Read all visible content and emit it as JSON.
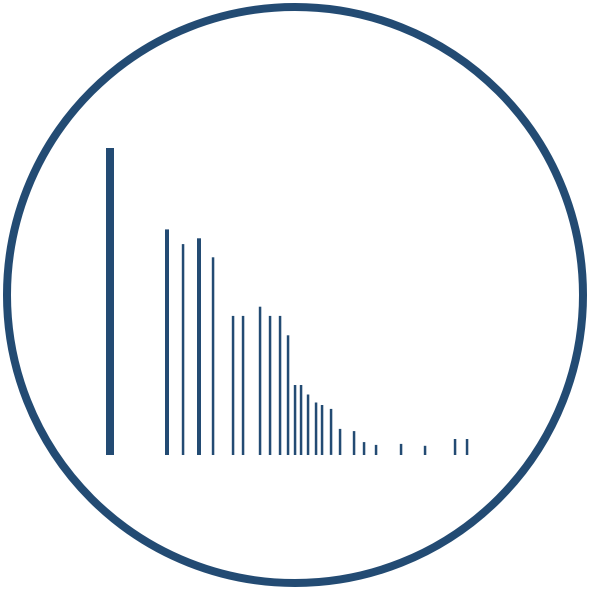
{
  "colors": {
    "primary": "#234b73",
    "background": "#ffffff"
  },
  "emblem": {
    "icon": "bar-spectrum-icon",
    "bars": [
      {
        "level": 1.0,
        "weight": "thick"
      },
      {
        "level": 0.735,
        "weight": "medium"
      },
      {
        "level": 0.687,
        "weight": "thin"
      },
      {
        "level": 0.706,
        "weight": "medium"
      },
      {
        "level": 0.644,
        "weight": "thin"
      },
      {
        "level": 0.453,
        "weight": "thin"
      },
      {
        "level": 0.453,
        "weight": "thin"
      },
      {
        "level": 0.483,
        "weight": "thin"
      },
      {
        "level": 0.453,
        "weight": "thin"
      },
      {
        "level": 0.453,
        "weight": "thin"
      },
      {
        "level": 0.39,
        "weight": "thin"
      },
      {
        "level": 0.228,
        "weight": "thin"
      },
      {
        "level": 0.228,
        "weight": "thin"
      },
      {
        "level": 0.197,
        "weight": "thin"
      },
      {
        "level": 0.171,
        "weight": "thin"
      },
      {
        "level": 0.163,
        "weight": "thin"
      },
      {
        "level": 0.15,
        "weight": "thin"
      },
      {
        "level": 0.085,
        "weight": "thin"
      },
      {
        "level": 0.078,
        "weight": "thin"
      },
      {
        "level": 0.042,
        "weight": "thin"
      },
      {
        "level": 0.033,
        "weight": "thin"
      },
      {
        "level": 0.036,
        "weight": "thin"
      },
      {
        "level": 0.03,
        "weight": "thin"
      },
      {
        "level": 0.052,
        "weight": "thin"
      },
      {
        "level": 0.052,
        "weight": "thin"
      }
    ]
  }
}
